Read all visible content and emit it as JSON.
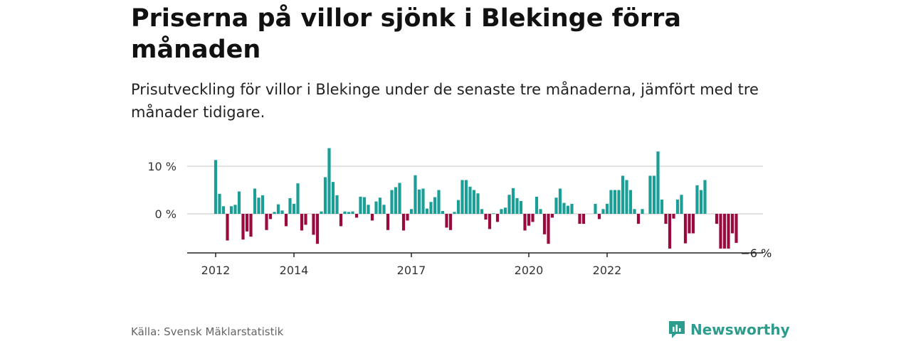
{
  "title": "Priserna på villor sjönk i Blekinge förra månaden",
  "subtitle": "Prisutveckling för villor i Blekinge under de senaste tre månaderna, jämfört med tre månader tidigare.",
  "source": "Källa: Svensk Mäklarstatistik",
  "brand": "Newsworthy",
  "colors": {
    "positive": "#1a9e96",
    "negative": "#9b0a3f",
    "brand": "#2e9c8c",
    "grid": "#d9d9d9"
  },
  "chart_data": {
    "type": "bar",
    "title": "",
    "xlabel": "",
    "ylabel": "",
    "ylim": [
      -8,
      14
    ],
    "yticks": [
      0,
      10
    ],
    "ytick_labels": [
      "0 %",
      "10 %"
    ],
    "xtick_labels": [
      "2012",
      "2014",
      "2017",
      "2020",
      "2022"
    ],
    "xtick_index": [
      0,
      20,
      50,
      80,
      100
    ],
    "last_value_label": "−6 %",
    "grid": true,
    "values": [
      11.3,
      4.2,
      1.6,
      -5.6,
      1.6,
      1.9,
      4.7,
      -5.4,
      -3.7,
      -4.8,
      5.3,
      3.4,
      3.9,
      -3.4,
      -1.1,
      0.4,
      2.0,
      0.7,
      -2.6,
      3.3,
      2.1,
      6.4,
      -3.5,
      -2.3,
      0.0,
      -4.4,
      -6.3,
      0.5,
      7.7,
      13.8,
      6.7,
      3.9,
      -2.6,
      0.5,
      0.4,
      0.5,
      -0.8,
      3.6,
      3.5,
      1.9,
      -1.4,
      2.6,
      3.4,
      1.9,
      -3.4,
      5.0,
      5.6,
      6.5,
      -3.5,
      -1.4,
      1.0,
      8.1,
      5.1,
      5.3,
      1.1,
      2.5,
      3.5,
      5.0,
      0.6,
      -2.9,
      -3.4,
      0.4,
      2.9,
      7.1,
      7.1,
      5.7,
      5.0,
      4.3,
      1.0,
      -1.2,
      -3.2,
      0.1,
      -1.7,
      1.0,
      1.3,
      4.0,
      5.4,
      3.3,
      2.7,
      -3.5,
      -2.5,
      -1.7,
      3.6,
      1.0,
      -4.3,
      -6.3,
      -0.8,
      3.4,
      5.3,
      2.3,
      1.7,
      2.1,
      0.0,
      -2.1,
      -2.1,
      0.0,
      0.0,
      2.1,
      -1.1,
      1.0,
      2.1,
      5.0,
      5.0,
      5.0,
      8.0,
      7.1,
      5.0,
      1.0,
      -2.1,
      1.0,
      0.0,
      8.0,
      8.0,
      13.1,
      3.0,
      -2.1,
      -7.3,
      -1.0,
      3.0,
      4.0,
      -6.2,
      -4.1,
      -4.1,
      6.0,
      5.0,
      7.1,
      0.0,
      0.0,
      -2.1,
      -7.3,
      -7.3,
      -7.3,
      -4.1,
      -6.1
    ]
  }
}
